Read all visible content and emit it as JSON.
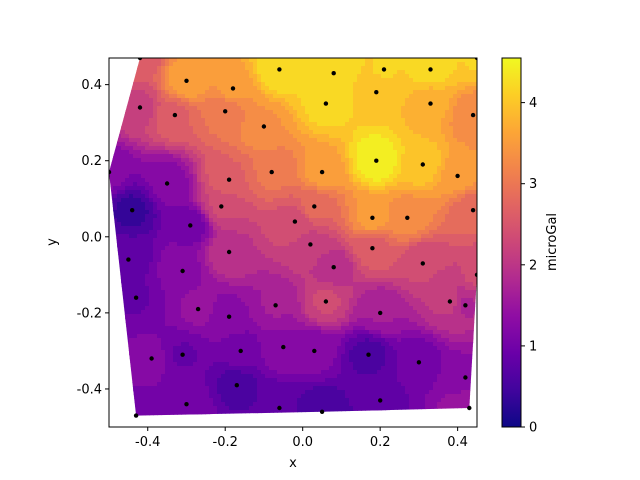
{
  "chart_data": {
    "type": "contour",
    "title": "",
    "xlabel": "x",
    "ylabel": "y",
    "colorbar_label": "microGal",
    "colormap": "plasma",
    "xlim": [
      -0.5,
      0.45
    ],
    "ylim": [
      -0.5,
      0.47
    ],
    "clim": [
      0,
      4.55
    ],
    "xticks": [
      "-0.4",
      "-0.2",
      "0.0",
      "0.2",
      "0.4"
    ],
    "xtick_values": [
      -0.4,
      -0.2,
      0.0,
      0.2,
      0.4
    ],
    "yticks": [
      "-0.4",
      "-0.2",
      "0.0",
      "0.2",
      "0.4"
    ],
    "ytick_values": [
      -0.4,
      -0.2,
      0.0,
      0.2,
      0.4
    ],
    "colorbar_ticks": [
      "0",
      "1",
      "2",
      "3",
      "4"
    ],
    "colorbar_tick_values": [
      0,
      1,
      2,
      3,
      4
    ],
    "points": [
      {
        "x": -0.42,
        "y": 0.47,
        "v": 2.6
      },
      {
        "x": -0.3,
        "y": 0.41,
        "v": 3.6
      },
      {
        "x": -0.18,
        "y": 0.39,
        "v": 3.5
      },
      {
        "x": -0.06,
        "y": 0.44,
        "v": 4.3
      },
      {
        "x": 0.08,
        "y": 0.43,
        "v": 4.2
      },
      {
        "x": 0.19,
        "y": 0.38,
        "v": 4.0
      },
      {
        "x": 0.21,
        "y": 0.44,
        "v": 4.1
      },
      {
        "x": 0.33,
        "y": 0.44,
        "v": 4.2
      },
      {
        "x": 0.45,
        "y": 0.47,
        "v": 4.1
      },
      {
        "x": -0.42,
        "y": 0.34,
        "v": 2.2
      },
      {
        "x": -0.33,
        "y": 0.32,
        "v": 2.7
      },
      {
        "x": -0.2,
        "y": 0.33,
        "v": 3.0
      },
      {
        "x": -0.1,
        "y": 0.29,
        "v": 3.4
      },
      {
        "x": 0.06,
        "y": 0.35,
        "v": 4.2
      },
      {
        "x": 0.33,
        "y": 0.35,
        "v": 3.7
      },
      {
        "x": 0.44,
        "y": 0.32,
        "v": 3.2
      },
      {
        "x": -0.5,
        "y": 0.17,
        "v": 1.2
      },
      {
        "x": -0.19,
        "y": 0.15,
        "v": 2.7
      },
      {
        "x": -0.08,
        "y": 0.17,
        "v": 3.0
      },
      {
        "x": 0.05,
        "y": 0.17,
        "v": 3.5
      },
      {
        "x": 0.19,
        "y": 0.2,
        "v": 4.5
      },
      {
        "x": 0.31,
        "y": 0.19,
        "v": 4.0
      },
      {
        "x": 0.4,
        "y": 0.16,
        "v": 3.5
      },
      {
        "x": -0.35,
        "y": 0.14,
        "v": 1.2
      },
      {
        "x": -0.44,
        "y": 0.07,
        "v": 0.4
      },
      {
        "x": -0.29,
        "y": 0.03,
        "v": 1.0
      },
      {
        "x": -0.21,
        "y": 0.08,
        "v": 2.3
      },
      {
        "x": 0.03,
        "y": 0.08,
        "v": 2.8
      },
      {
        "x": 0.18,
        "y": 0.05,
        "v": 3.5
      },
      {
        "x": 0.27,
        "y": 0.05,
        "v": 3.3
      },
      {
        "x": 0.44,
        "y": 0.07,
        "v": 2.8
      },
      {
        "x": -0.02,
        "y": 0.04,
        "v": 2.4
      },
      {
        "x": -0.19,
        "y": -0.04,
        "v": 2.0
      },
      {
        "x": 0.02,
        "y": -0.02,
        "v": 2.2
      },
      {
        "x": 0.18,
        "y": -0.03,
        "v": 2.6
      },
      {
        "x": 0.31,
        "y": -0.07,
        "v": 2.3
      },
      {
        "x": -0.45,
        "y": -0.06,
        "v": 0.8
      },
      {
        "x": -0.31,
        "y": -0.09,
        "v": 1.3
      },
      {
        "x": 0.08,
        "y": -0.08,
        "v": 1.9
      },
      {
        "x": 0.45,
        "y": -0.1,
        "v": 2.3
      },
      {
        "x": -0.43,
        "y": -0.16,
        "v": 0.9
      },
      {
        "x": 0.06,
        "y": -0.17,
        "v": 2.3
      },
      {
        "x": 0.38,
        "y": -0.17,
        "v": 2.1
      },
      {
        "x": 0.42,
        "y": -0.18,
        "v": 1.8
      },
      {
        "x": -0.27,
        "y": -0.19,
        "v": 1.4
      },
      {
        "x": -0.07,
        "y": -0.18,
        "v": 1.6
      },
      {
        "x": 0.2,
        "y": -0.2,
        "v": 1.6
      },
      {
        "x": -0.19,
        "y": -0.21,
        "v": 1.3
      },
      {
        "x": -0.05,
        "y": -0.29,
        "v": 1.3
      },
      {
        "x": 0.03,
        "y": -0.3,
        "v": 1.2
      },
      {
        "x": -0.16,
        "y": -0.3,
        "v": 1.0
      },
      {
        "x": -0.39,
        "y": -0.32,
        "v": 1.2
      },
      {
        "x": -0.31,
        "y": -0.31,
        "v": 0.9
      },
      {
        "x": 0.17,
        "y": -0.31,
        "v": 0.6
      },
      {
        "x": 0.3,
        "y": -0.33,
        "v": 1.0
      },
      {
        "x": -0.17,
        "y": -0.39,
        "v": 0.6
      },
      {
        "x": 0.42,
        "y": -0.37,
        "v": 1.3
      },
      {
        "x": -0.43,
        "y": -0.47,
        "v": 1.1
      },
      {
        "x": -0.3,
        "y": -0.44,
        "v": 1.1
      },
      {
        "x": -0.06,
        "y": -0.45,
        "v": 0.7
      },
      {
        "x": 0.05,
        "y": -0.46,
        "v": 0.5
      },
      {
        "x": 0.2,
        "y": -0.43,
        "v": 0.8
      },
      {
        "x": 0.43,
        "y": -0.45,
        "v": 1.5
      }
    ]
  }
}
